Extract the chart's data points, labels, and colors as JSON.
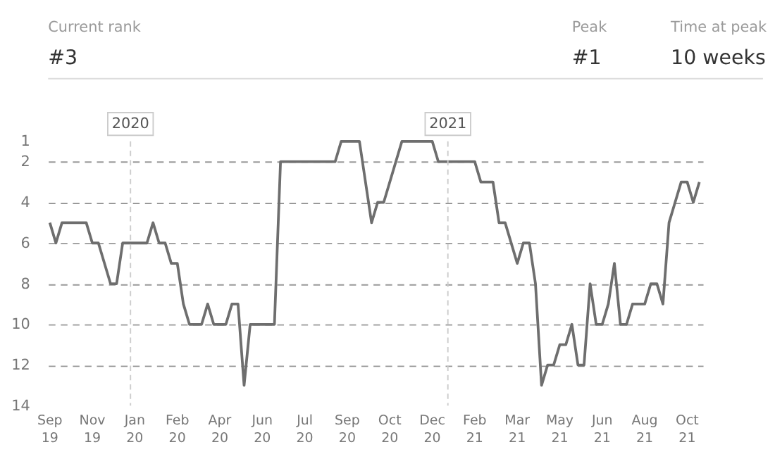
{
  "chart_data": {
    "type": "line",
    "x": [
      "2019-09-30",
      "2019-10-07",
      "2019-10-14",
      "2019-11-11",
      "2019-11-18",
      "2019-11-25",
      "2019-12-09",
      "2019-12-16",
      "2019-12-23",
      "2020-01-20",
      "2020-01-27",
      "2020-02-03",
      "2020-02-10",
      "2020-02-17",
      "2020-02-24",
      "2020-03-02",
      "2020-03-09",
      "2020-03-23",
      "2020-03-30",
      "2020-04-06",
      "2020-04-20",
      "2020-04-27",
      "2020-05-04",
      "2020-05-11",
      "2020-05-18",
      "2020-06-15",
      "2020-06-22",
      "2020-08-24",
      "2020-08-31",
      "2020-09-21",
      "2020-10-05",
      "2020-10-12",
      "2020-10-19",
      "2020-11-09",
      "2020-12-14",
      "2020-12-21",
      "2021-02-01",
      "2021-02-08",
      "2021-02-22",
      "2021-03-01",
      "2021-03-08",
      "2021-03-22",
      "2021-03-29",
      "2021-04-05",
      "2021-04-12",
      "2021-04-19",
      "2021-04-26",
      "2021-05-03",
      "2021-05-10",
      "2021-05-17",
      "2021-05-24",
      "2021-05-31",
      "2021-06-07",
      "2021-06-14",
      "2021-06-21",
      "2021-06-28",
      "2021-07-05",
      "2021-07-12",
      "2021-07-19",
      "2021-07-26",
      "2021-08-02",
      "2021-08-16",
      "2021-08-23",
      "2021-08-30",
      "2021-09-06",
      "2021-09-13",
      "2021-09-20",
      "2021-09-27",
      "2021-10-04",
      "2021-10-11",
      "2021-10-18"
    ],
    "series": [
      {
        "color": "#6e6e6e",
        "values": [
          5,
          6,
          5,
          5,
          6,
          6,
          8,
          8,
          6,
          6,
          5,
          6,
          6,
          7,
          7,
          9,
          10,
          10,
          9,
          10,
          10,
          9,
          9,
          13,
          10,
          10,
          2,
          2,
          1,
          1,
          5,
          4,
          4,
          1,
          1,
          2,
          2,
          3,
          3,
          5,
          5,
          7,
          6,
          6,
          8,
          13,
          12,
          12,
          11,
          11,
          10,
          12,
          12,
          8,
          10,
          10,
          9,
          7,
          10,
          10,
          9,
          9,
          8,
          8,
          9,
          5,
          4,
          3,
          3,
          4,
          3
        ]
      }
    ],
    "xlim": [
      "2019-09-28",
      "2021-10-22"
    ],
    "xticks": [
      {
        "value": "2019-09-30",
        "label": "Sep 19"
      },
      {
        "value": "2019-11-18",
        "label": "Nov 19"
      },
      {
        "value": "2020-01-06",
        "label": "Jan 20"
      },
      {
        "value": "2020-02-24",
        "label": "Feb 20"
      },
      {
        "value": "2020-04-13",
        "label": "Apr 20"
      },
      {
        "value": "2020-06-01",
        "label": "Jun 20"
      },
      {
        "value": "2020-07-20",
        "label": "Jul 20"
      },
      {
        "value": "2020-09-07",
        "label": "Sep 20"
      },
      {
        "value": "2020-10-26",
        "label": "Oct 20"
      },
      {
        "value": "2020-12-14",
        "label": "Dec 20"
      },
      {
        "value": "2021-02-01",
        "label": "Feb 21"
      },
      {
        "value": "2021-03-22",
        "label": "Mar 21"
      },
      {
        "value": "2021-05-10",
        "label": "May 21"
      },
      {
        "value": "2021-06-28",
        "label": "Jun 21"
      },
      {
        "value": "2021-08-16",
        "label": "Aug 21"
      },
      {
        "value": "2021-10-04",
        "label": "Oct 21"
      }
    ],
    "ylim": [
      14,
      1
    ],
    "yticks": [
      1,
      2,
      4,
      6,
      8,
      10,
      12,
      14
    ],
    "grid": "y",
    "ref_lines": [
      {
        "axis": "x",
        "value": "2020-01-01",
        "label": "2020",
        "color": "#cccccc",
        "line_style": "dashed"
      },
      {
        "axis": "x",
        "value": "2021-01-01",
        "label": "2021",
        "color": "#cccccc",
        "line_style": "dashed"
      }
    ],
    "annotations": [
      "Current rank",
      "#3",
      "Peak",
      "#1",
      "Time at peak",
      "10 weeks"
    ]
  }
}
